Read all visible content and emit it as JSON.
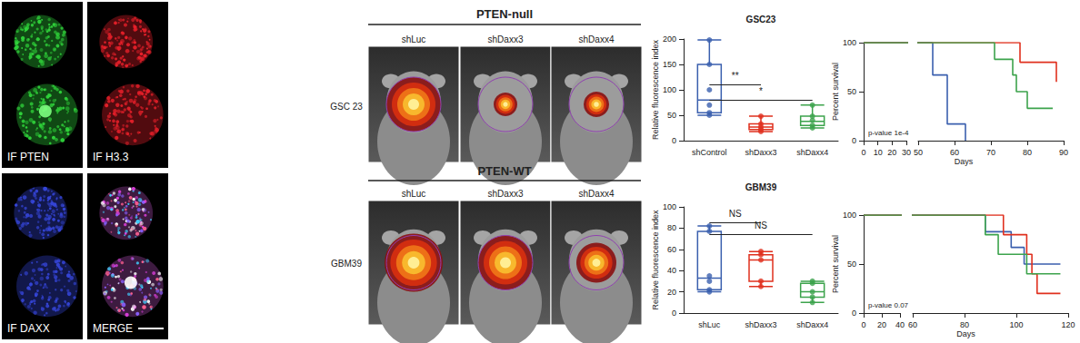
{
  "figure": {
    "if_panels": [
      "IF PTEN",
      "IF H3.3",
      "IF DAXX",
      "MERGE"
    ],
    "imaging": [
      {
        "title": "PTEN-null",
        "row_label": "GSC 23",
        "columns": [
          "shLuc",
          "shDaxx3",
          "shDaxx4"
        ]
      },
      {
        "title": "PTEN-WT",
        "row_label": "GBM39",
        "columns": [
          "shLuc",
          "shDaxx3",
          "shDaxx4"
        ]
      }
    ]
  },
  "chart_data": [
    {
      "type": "boxplot",
      "title": "GSC23",
      "y_label": "Relative fluorescence index",
      "categories": [
        "shControl",
        "shDaxx3",
        "shDaxx4"
      ],
      "colors": [
        "#3a5fae",
        "#e0301e",
        "#3ca34c"
      ],
      "stats": [
        [
          50,
          55,
          80,
          150,
          198
        ],
        [
          18,
          22,
          27,
          33,
          48
        ],
        [
          25,
          30,
          38,
          48,
          70
        ]
      ],
      "points": [
        [
          198,
          150,
          100,
          70,
          55,
          50
        ],
        [
          48,
          33,
          27,
          22,
          18
        ],
        [
          70,
          48,
          40,
          30,
          25
        ]
      ],
      "ylim": [
        0,
        200
      ],
      "yticks": [
        0,
        50,
        100,
        150,
        200
      ],
      "grid": false,
      "annotations": [
        {
          "text": "**",
          "from": "shControl",
          "to": "shDaxx3",
          "y": 110
        },
        {
          "text": "*",
          "from": "shControl",
          "to": "shDaxx4",
          "y": 80
        }
      ]
    },
    {
      "type": "line",
      "line_style": "step",
      "x_label": "Days",
      "y_label": "Percent survival",
      "xlim": [
        0,
        90
      ],
      "xbreak": [
        30,
        50
      ],
      "xticks": [
        0,
        10,
        20,
        30,
        50,
        60,
        70,
        80,
        90
      ],
      "ylim": [
        0,
        100
      ],
      "yticks": [
        0,
        50,
        100
      ],
      "grid": false,
      "annotation": "p-value 1e-4",
      "series": [
        {
          "color": "#3a5fae",
          "x": [
            0,
            54,
            58,
            63
          ],
          "values": [
            100,
            67,
            17,
            0
          ]
        },
        {
          "color": "#e0301e",
          "x": [
            0,
            78,
            88
          ],
          "values": [
            100,
            80,
            60
          ]
        },
        {
          "color": "#3ca34c",
          "x": [
            0,
            71,
            76,
            77,
            80,
            87
          ],
          "values": [
            100,
            83,
            67,
            50,
            33,
            33
          ]
        }
      ]
    },
    {
      "type": "boxplot",
      "title": "GBM39",
      "y_label": "Relative fluorescence index",
      "categories": [
        "shLuc",
        "shDaxx3",
        "shDaxx4"
      ],
      "colors": [
        "#3a5fae",
        "#e0301e",
        "#3ca34c"
      ],
      "stats": [
        [
          20,
          22,
          33,
          77,
          82
        ],
        [
          25,
          30,
          50,
          55,
          58
        ],
        [
          10,
          15,
          20,
          28,
          30
        ]
      ],
      "points": [
        [
          82,
          77,
          35,
          30,
          22,
          20
        ],
        [
          58,
          55,
          50,
          30,
          25
        ],
        [
          30,
          28,
          20,
          15,
          10
        ]
      ],
      "ylim": [
        0,
        100
      ],
      "yticks": [
        0,
        20,
        40,
        60,
        80,
        100
      ],
      "grid": false,
      "annotations": [
        {
          "text": "NS",
          "from": "shLuc",
          "to": "shDaxx3",
          "y": 85
        },
        {
          "text": "NS",
          "from": "shLuc",
          "to": "shDaxx4",
          "y": 74
        }
      ]
    },
    {
      "type": "line",
      "line_style": "step",
      "x_label": "Days",
      "y_label": "Percent survival",
      "xlim": [
        0,
        120
      ],
      "xbreak": [
        40,
        60
      ],
      "xticks": [
        0,
        20,
        40,
        60,
        80,
        100,
        120
      ],
      "ylim": [
        0,
        100
      ],
      "yticks": [
        0,
        50,
        100
      ],
      "grid": false,
      "annotation": "p-value 0.07",
      "series": [
        {
          "color": "#3a5fae",
          "x": [
            0,
            88,
            98,
            103,
            117
          ],
          "values": [
            100,
            83,
            67,
            50,
            50
          ]
        },
        {
          "color": "#e0301e",
          "x": [
            0,
            95,
            104,
            106,
            108,
            117
          ],
          "values": [
            100,
            80,
            60,
            40,
            20,
            20
          ]
        },
        {
          "color": "#3ca34c",
          "x": [
            0,
            88,
            93,
            104,
            117
          ],
          "values": [
            100,
            80,
            60,
            40,
            40
          ]
        }
      ]
    }
  ]
}
